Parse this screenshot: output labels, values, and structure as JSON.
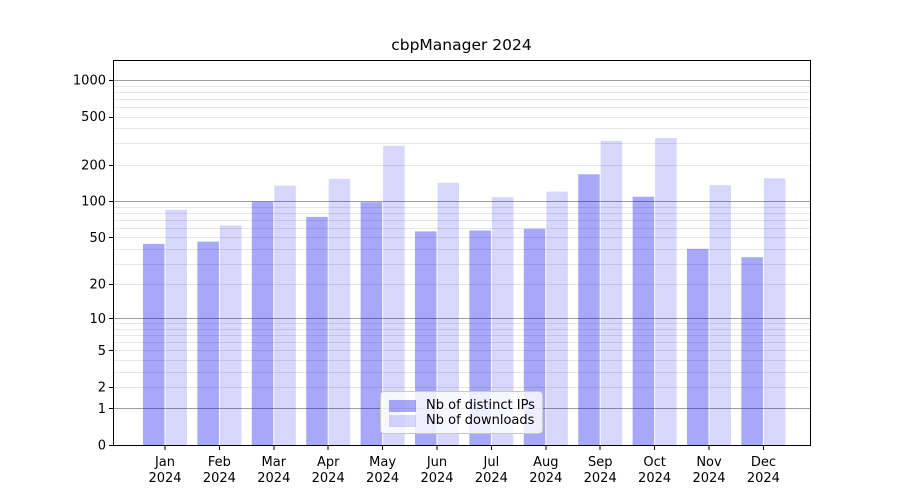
{
  "title": "cbpManager 2024",
  "colors": {
    "background": "#ffffff",
    "distinct_ips_bar": "rgba(0,0,235,0.34)",
    "downloads_bar": "rgba(0,0,235,0.155)",
    "major_gridline": "#9e9e9e",
    "minor_gridline": "#e7e7e7",
    "axis": "#000000",
    "text": "#000000"
  },
  "chart_data": {
    "type": "bar",
    "title": "cbpManager 2024",
    "categories": [
      "Jan",
      "Feb",
      "Mar",
      "Apr",
      "May",
      "Jun",
      "Jul",
      "Aug",
      "Sep",
      "Oct",
      "Nov",
      "Dec"
    ],
    "category_year": "2024",
    "series": [
      {
        "name": "Nb of distinct IPs",
        "color": "rgba(0,0,235,0.34)",
        "values": [
          44,
          46,
          99,
          74,
          98,
          56,
          57,
          59,
          167,
          109,
          40,
          34
        ]
      },
      {
        "name": "Nb of downloads",
        "color": "rgba(0,0,235,0.155)",
        "values": [
          85,
          63,
          135,
          153,
          287,
          142,
          108,
          120,
          315,
          333,
          136,
          155
        ]
      }
    ],
    "xlabel": "",
    "ylabel": "",
    "yscale": "log1p",
    "ylim": [
      0,
      1500
    ],
    "y_ticks": [
      0,
      1,
      2,
      5,
      10,
      20,
      50,
      100,
      200,
      500,
      1000
    ],
    "y_major_gridlines": [
      1,
      10,
      100,
      1000
    ],
    "y_minor_gridlines": [
      2,
      3,
      4,
      5,
      6,
      7,
      8,
      9,
      20,
      30,
      40,
      50,
      60,
      70,
      80,
      90,
      200,
      300,
      400,
      500,
      600,
      700,
      800,
      900
    ],
    "grid": true,
    "legend_position": "lower center"
  }
}
